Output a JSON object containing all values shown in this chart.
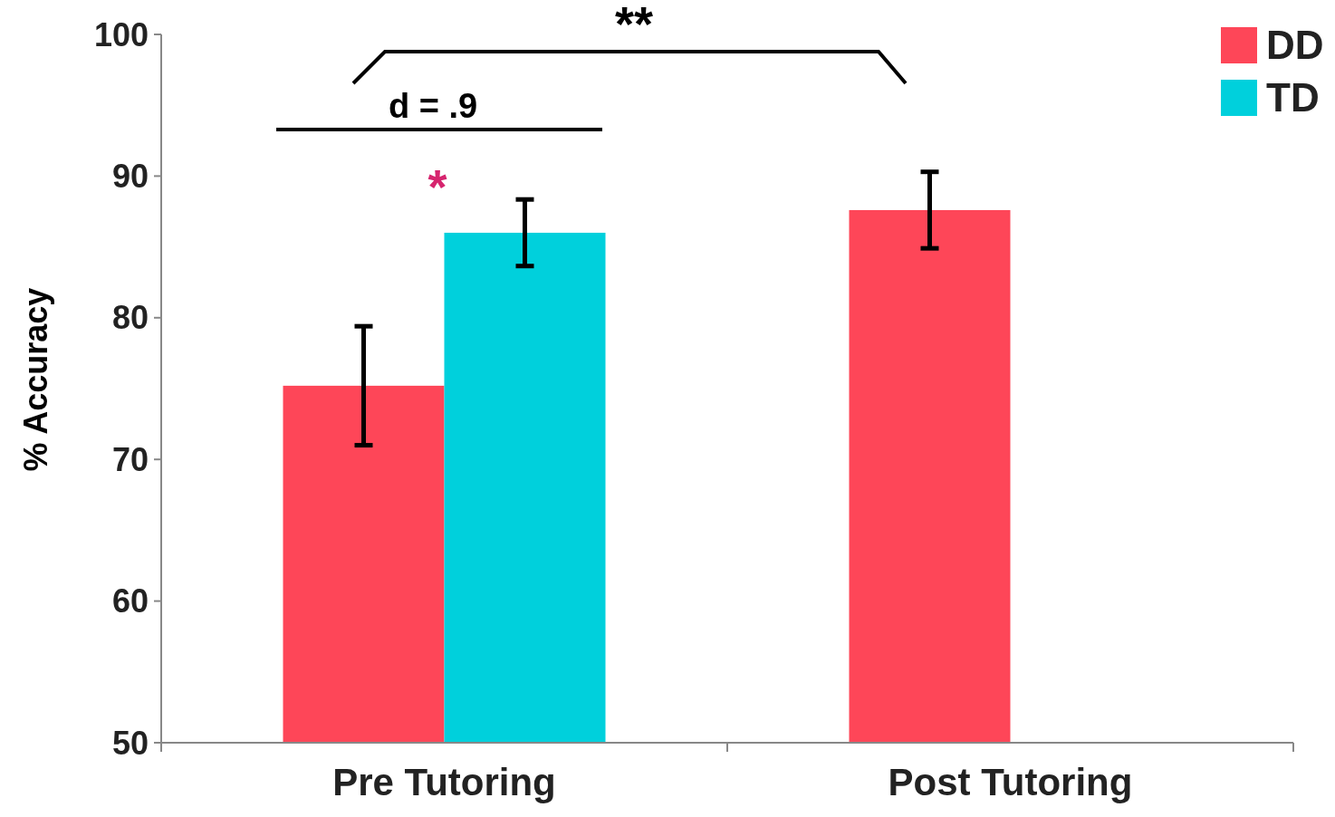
{
  "chart_data": {
    "type": "bar",
    "ylabel": "% Accuracy",
    "categories": [
      "Pre Tutoring",
      "Post Tutoring"
    ],
    "series": [
      {
        "name": "DD",
        "color": "#fe4658",
        "values": [
          75.2,
          87.6
        ],
        "errors": [
          4.2,
          2.7
        ]
      },
      {
        "name": "TD",
        "color": "#00d0dc",
        "values": [
          86.0,
          null
        ],
        "errors": [
          2.35,
          null
        ]
      }
    ],
    "ylim": [
      50,
      100
    ],
    "yticks": [
      50,
      60,
      70,
      80,
      90,
      100
    ],
    "grid": false,
    "legend": "top right",
    "annotations": [
      "**",
      "d = .9",
      "*"
    ]
  }
}
